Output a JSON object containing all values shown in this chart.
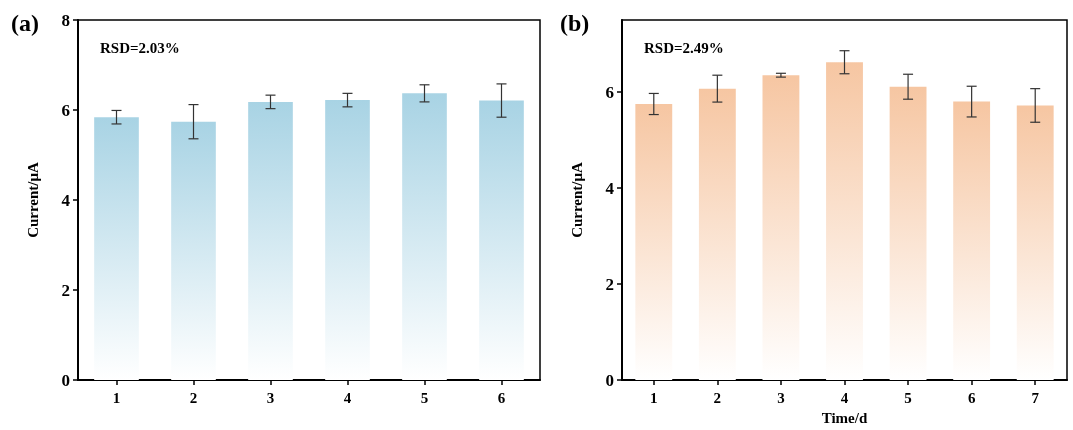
{
  "chart_data": [
    {
      "type": "bar",
      "title": "(a)",
      "ylabel": "Current/μA",
      "categories": [
        "1",
        "2",
        "3",
        "4",
        "5",
        "6"
      ],
      "series": [
        {
          "color": "#a8d3e4",
          "values": [
            5.84,
            5.74,
            6.18,
            6.22,
            6.37,
            6.21
          ],
          "errors": [
            0.15,
            0.38,
            0.15,
            0.15,
            0.19,
            0.37
          ]
        }
      ],
      "ylim": [
        0,
        8
      ],
      "yticks": [
        0,
        2,
        4,
        6,
        8
      ],
      "grid": false,
      "annotations": [
        "RSD=2.03%"
      ]
    },
    {
      "type": "bar",
      "title": "(b)",
      "xlabel": "Time/d",
      "ylabel": "Current/μA",
      "categories": [
        "1",
        "2",
        "3",
        "4",
        "5",
        "6",
        "7"
      ],
      "series": [
        {
          "color": "#f6c6a2",
          "values": [
            5.75,
            6.07,
            6.35,
            6.62,
            6.11,
            5.8,
            5.72
          ],
          "errors": [
            0.22,
            0.28,
            0.04,
            0.24,
            0.26,
            0.32,
            0.35
          ]
        }
      ],
      "ylim": [
        0,
        7.5
      ],
      "yticks": [
        0,
        2,
        4,
        6
      ],
      "grid": false,
      "annotations": [
        "RSD=2.49%"
      ]
    }
  ]
}
